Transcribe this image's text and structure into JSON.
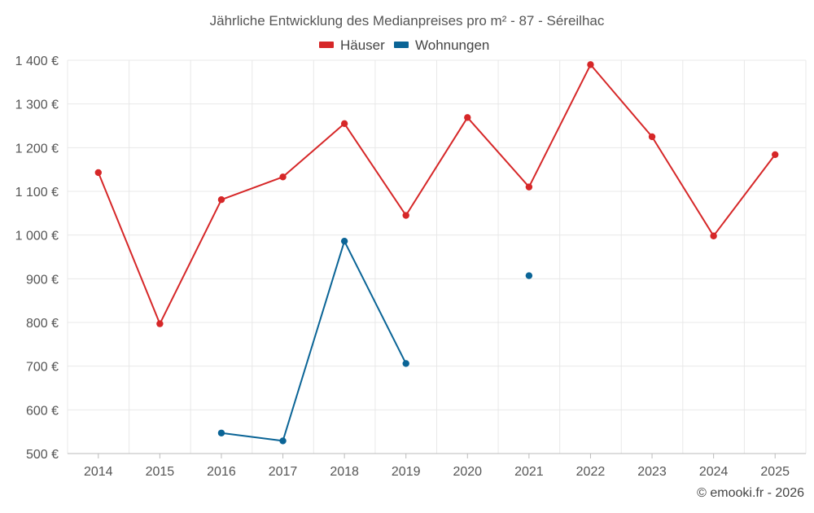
{
  "chart_data": {
    "type": "line",
    "title": "Jährliche Entwicklung des Medianpreises pro m² - 87 - Séreilhac",
    "x": [
      "2014",
      "2015",
      "2016",
      "2017",
      "2018",
      "2019",
      "2020",
      "2021",
      "2022",
      "2023",
      "2024",
      "2025"
    ],
    "y_ticks": [
      "500 €",
      "600 €",
      "700 €",
      "800 €",
      "900 €",
      "1 000 €",
      "1 100 €",
      "1 200 €",
      "1 300 €",
      "1 400 €"
    ],
    "ylim": [
      500,
      1400
    ],
    "grid": true,
    "legend_position": "top-center",
    "series": [
      {
        "name": "Häuser",
        "color": "#d62728",
        "values": [
          1143,
          797,
          1081,
          1133,
          1255,
          1045,
          1269,
          1110,
          1390,
          1225,
          998,
          1184
        ]
      },
      {
        "name": "Wohnungen",
        "color": "#0a6496",
        "values": [
          null,
          null,
          547,
          529,
          986,
          706,
          null,
          907,
          null,
          null,
          null,
          null
        ]
      }
    ],
    "credit": "© emooki.fr - 2026"
  }
}
